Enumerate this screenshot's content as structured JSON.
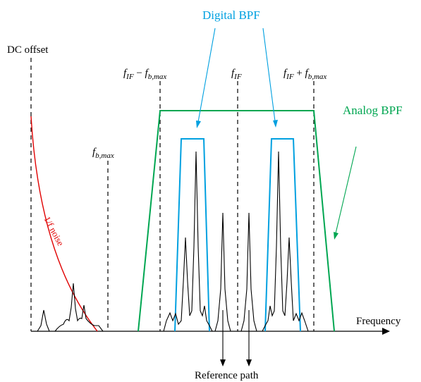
{
  "labels": {
    "dc_offset": "DC offset",
    "digital_bpf": "Digital BPF",
    "analog_bpf": "Analog BPF",
    "one_over_f_noise": "1/f noise",
    "frequency": "Frequency",
    "reference_path": "Reference path",
    "fb_max": {
      "main": "f",
      "sub": "b,max"
    },
    "fif_minus": {
      "f1": "f",
      "s1": "IF",
      "op": " − ",
      "f2": "f",
      "s2": "b,max"
    },
    "fif": {
      "main": "f",
      "sub": "IF"
    },
    "fif_plus": {
      "f1": "f",
      "s1": "IF",
      "op": " + ",
      "f2": "f",
      "s2": "b,max"
    }
  },
  "colors": {
    "digital_bpf": "#00a0e0",
    "analog_bpf": "#00a651",
    "noise": "#e00000",
    "signal": "#000000"
  }
}
